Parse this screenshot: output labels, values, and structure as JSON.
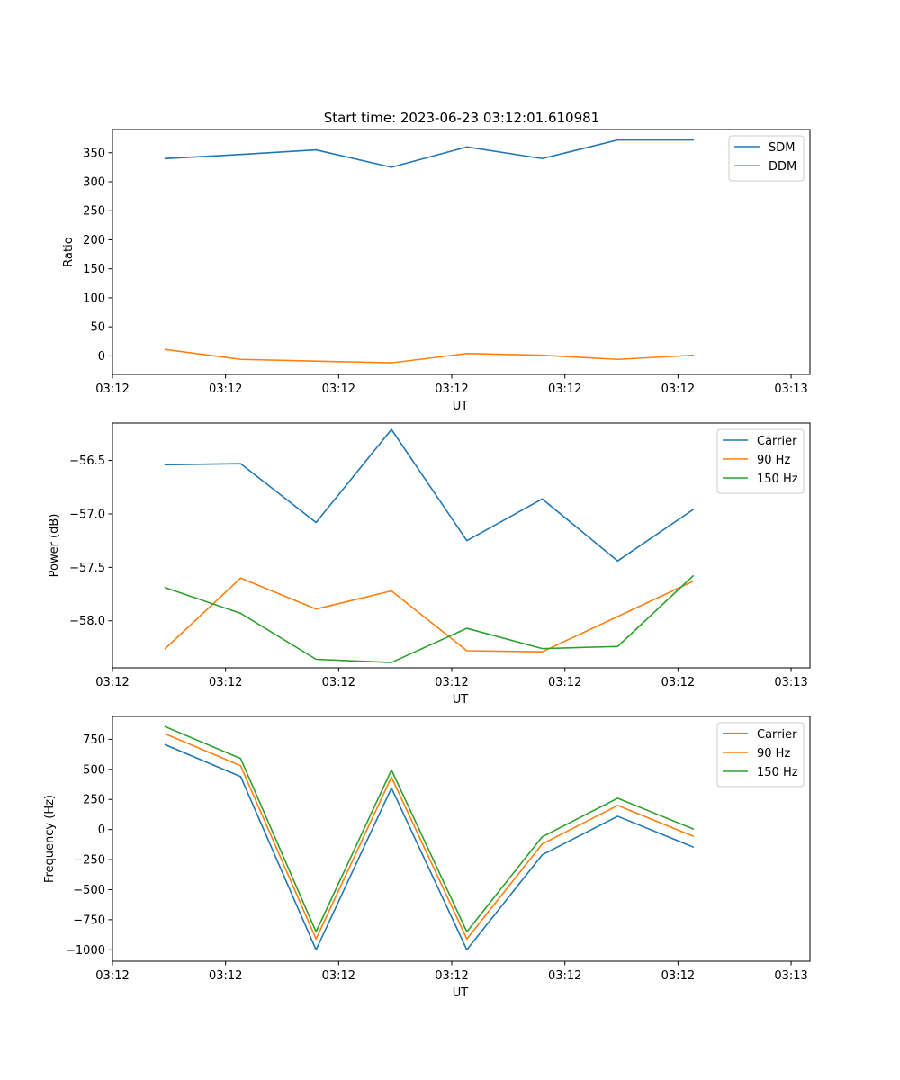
{
  "figure": {
    "title": "Start time: 2023-06-23 03:12:01.610981"
  },
  "colors": {
    "blue": "#1f77b4",
    "orange": "#ff7f0e",
    "green": "#2ca02c"
  },
  "chart_data": [
    {
      "type": "line",
      "title": "Start time: 2023-06-23 03:12:01.610981",
      "xlabel": "UT",
      "ylabel": "Ratio",
      "x": [
        0,
        1,
        2,
        3,
        4,
        5,
        6,
        7
      ],
      "xlim": [
        -0.7,
        8.55
      ],
      "xticks": [
        -0.7,
        0.8,
        2.3,
        3.8,
        5.3,
        6.8,
        8.3
      ],
      "xtick_labels": [
        "03:12",
        "03:12",
        "03:12",
        "03:12",
        "03:12",
        "03:12",
        "03:13"
      ],
      "ylim": [
        -32,
        390
      ],
      "yticks": [
        0,
        50,
        100,
        150,
        200,
        250,
        300,
        350
      ],
      "ytick_labels": [
        "0",
        "50",
        "100",
        "150",
        "200",
        "250",
        "300",
        "350"
      ],
      "legend": "top-right",
      "grid": false,
      "series": [
        {
          "name": "SDM",
          "color": "#1f77b4",
          "values": [
            340,
            347,
            355,
            325,
            360,
            340,
            372,
            372
          ]
        },
        {
          "name": "DDM",
          "color": "#ff7f0e",
          "values": [
            11,
            -6,
            -9,
            -12,
            4,
            1,
            -6,
            1
          ]
        }
      ]
    },
    {
      "type": "line",
      "title": "",
      "xlabel": "UT",
      "ylabel": "Power (dB)",
      "x": [
        0,
        1,
        2,
        3,
        4,
        5,
        6,
        7
      ],
      "xlim": [
        -0.7,
        8.55
      ],
      "xticks": [
        -0.7,
        0.8,
        2.3,
        3.8,
        5.3,
        6.8,
        8.3
      ],
      "xtick_labels": [
        "03:12",
        "03:12",
        "03:12",
        "03:12",
        "03:12",
        "03:12",
        "03:13"
      ],
      "ylim": [
        -58.44,
        -56.15
      ],
      "yticks": [
        -58.0,
        -57.5,
        -57.0,
        -56.5
      ],
      "ytick_labels": [
        "−58.0",
        "−57.5",
        "−57.0",
        "−56.5"
      ],
      "legend": "top-right",
      "grid": false,
      "series": [
        {
          "name": "Carrier",
          "color": "#1f77b4",
          "values": [
            -56.54,
            -56.53,
            -57.08,
            -56.21,
            -57.25,
            -56.86,
            -57.44,
            -56.96
          ]
        },
        {
          "name": "90 Hz",
          "color": "#ff7f0e",
          "values": [
            -58.26,
            -57.6,
            -57.89,
            -57.72,
            -58.28,
            -58.29,
            -57.96,
            -57.63
          ]
        },
        {
          "name": "150 Hz",
          "color": "#2ca02c",
          "values": [
            -57.69,
            -57.93,
            -58.36,
            -58.39,
            -58.07,
            -58.26,
            -58.24,
            -57.58
          ]
        }
      ]
    },
    {
      "type": "line",
      "title": "",
      "xlabel": "UT",
      "ylabel": "Frequency (Hz)",
      "x": [
        0,
        1,
        2,
        3,
        4,
        5,
        6,
        7
      ],
      "xlim": [
        -0.7,
        8.55
      ],
      "xticks": [
        -0.7,
        0.8,
        2.3,
        3.8,
        5.3,
        6.8,
        8.3
      ],
      "xtick_labels": [
        "03:12",
        "03:12",
        "03:12",
        "03:12",
        "03:12",
        "03:12",
        "03:13"
      ],
      "ylim": [
        -1095,
        940
      ],
      "yticks": [
        -1000,
        -750,
        -500,
        -250,
        0,
        250,
        500,
        750
      ],
      "ytick_labels": [
        "−1000",
        "−750",
        "−500",
        "−250",
        "0",
        "250",
        "500",
        "750"
      ],
      "legend": "top-right",
      "grid": false,
      "series": [
        {
          "name": "Carrier",
          "color": "#1f77b4",
          "values": [
            705,
            440,
            -1000,
            345,
            -1000,
            -210,
            110,
            -145
          ]
        },
        {
          "name": "90 Hz",
          "color": "#ff7f0e",
          "values": [
            795,
            530,
            -910,
            435,
            -910,
            -120,
            200,
            -55
          ]
        },
        {
          "name": "150 Hz",
          "color": "#2ca02c",
          "values": [
            855,
            590,
            -850,
            495,
            -850,
            -60,
            260,
            5
          ]
        }
      ]
    }
  ]
}
